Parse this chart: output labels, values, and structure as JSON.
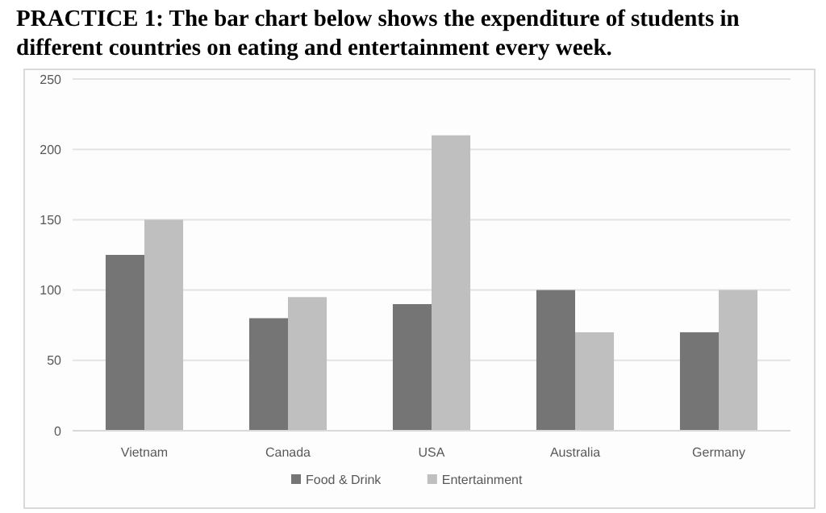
{
  "chart_data": {
    "type": "bar",
    "title": "PRACTICE 1: The bar chart below shows the expenditure of students in different countries on eating and entertainment every week.",
    "categories": [
      "Vietnam",
      "Canada",
      "USA",
      "Australia",
      "Germany"
    ],
    "series": [
      {
        "name": "Food & Drink",
        "color": "#757575",
        "values": [
          125,
          80,
          90,
          100,
          70
        ]
      },
      {
        "name": "Entertainment",
        "color": "#bfbfbf",
        "values": [
          150,
          95,
          210,
          70,
          100
        ]
      }
    ],
    "ylim": [
      0,
      250
    ],
    "yticks": [
      0,
      50,
      100,
      150,
      200,
      250
    ],
    "grid": "y",
    "legend": "bottom"
  }
}
